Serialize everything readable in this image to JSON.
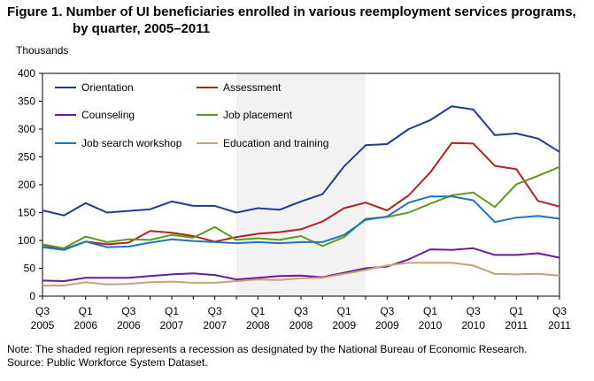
{
  "figure": {
    "title_line1": "Figure 1. Number of UI beneficiaries enrolled in various reemployment services programs,",
    "title_line2": "by quarter, 2005–2011",
    "note": "Note: The shaded region represents a recession as designated by the National Bureau of Economic Research.",
    "source": "Source: Public Workforce System Dataset."
  },
  "chart_data": {
    "type": "line",
    "title": "Figure 1. Number of UI beneficiaries enrolled in various reemployment services programs, by quarter, 2005–2011",
    "ylabel": "Thousands",
    "xlabel": "",
    "ylim": [
      0,
      400
    ],
    "yticks": [
      0,
      50,
      100,
      150,
      200,
      250,
      300,
      350,
      400
    ],
    "grid": false,
    "legend_placement": "top-left, inside plot, two columns",
    "shaded_region": {
      "from": "2007 Q4",
      "to": "2009 Q2",
      "color": "#f2f2f2"
    },
    "x": [
      "2005 Q3",
      "2005 Q4",
      "2006 Q1",
      "2006 Q2",
      "2006 Q3",
      "2006 Q4",
      "2007 Q1",
      "2007 Q2",
      "2007 Q3",
      "2007 Q4",
      "2008 Q1",
      "2008 Q2",
      "2008 Q3",
      "2008 Q4",
      "2009 Q1",
      "2009 Q2",
      "2009 Q3",
      "2009 Q4",
      "2010 Q1",
      "2010 Q2",
      "2010 Q3",
      "2010 Q4",
      "2011 Q1",
      "2011 Q2",
      "2011 Q3"
    ],
    "tick_labels": [
      {
        "index": 0,
        "q": "Q3",
        "y": "2005"
      },
      {
        "index": 2,
        "q": "Q1",
        "y": "2006"
      },
      {
        "index": 4,
        "q": "Q3",
        "y": "2006"
      },
      {
        "index": 6,
        "q": "Q1",
        "y": "2007"
      },
      {
        "index": 8,
        "q": "Q3",
        "y": "2007"
      },
      {
        "index": 10,
        "q": "Q1",
        "y": "2008"
      },
      {
        "index": 12,
        "q": "Q3",
        "y": "2008"
      },
      {
        "index": 14,
        "q": "Q1",
        "y": "2009"
      },
      {
        "index": 16,
        "q": "Q3",
        "y": "2009"
      },
      {
        "index": 18,
        "q": "Q1",
        "y": "2010"
      },
      {
        "index": 20,
        "q": "Q3",
        "y": "2010"
      },
      {
        "index": 22,
        "q": "Q1",
        "y": "2011"
      },
      {
        "index": 24,
        "q": "Q3",
        "y": "2011"
      }
    ],
    "series": [
      {
        "name": "Orientation",
        "color": "#1f3a93",
        "values": [
          154,
          145,
          167,
          150,
          153,
          156,
          170,
          162,
          162,
          150,
          158,
          155,
          170,
          183,
          233,
          271,
          273,
          300,
          316,
          341,
          335,
          289,
          292,
          283,
          259
        ]
      },
      {
        "name": "Assessment",
        "color": "#b22222",
        "values": [
          92,
          84,
          98,
          93,
          96,
          117,
          114,
          108,
          98,
          106,
          112,
          115,
          120,
          134,
          158,
          168,
          154,
          181,
          222,
          275,
          274,
          234,
          228,
          171,
          161
        ]
      },
      {
        "name": "Counseling",
        "color": "#6a1b9a",
        "values": [
          28,
          27,
          33,
          33,
          33,
          36,
          39,
          41,
          38,
          30,
          33,
          36,
          37,
          34,
          42,
          50,
          53,
          66,
          84,
          83,
          86,
          74,
          74,
          77,
          69
        ]
      },
      {
        "name": "Job placement",
        "color": "#5b9a23",
        "values": [
          93,
          86,
          107,
          97,
          102,
          101,
          110,
          105,
          124,
          101,
          104,
          101,
          108,
          90,
          106,
          139,
          142,
          150,
          166,
          181,
          186,
          160,
          201,
          216,
          232
        ]
      },
      {
        "name": "Job search workshop",
        "color": "#1e73be",
        "values": [
          88,
          83,
          98,
          88,
          89,
          96,
          102,
          99,
          97,
          95,
          97,
          95,
          97,
          97,
          110,
          137,
          143,
          168,
          179,
          179,
          172,
          133,
          141,
          144,
          139
        ]
      },
      {
        "name": "Education and training",
        "color": "#c8a07a",
        "values": [
          19,
          19,
          25,
          21,
          22,
          25,
          26,
          24,
          24,
          27,
          30,
          29,
          32,
          33,
          40,
          47,
          55,
          60,
          60,
          60,
          55,
          40,
          39,
          40,
          37
        ]
      }
    ]
  }
}
